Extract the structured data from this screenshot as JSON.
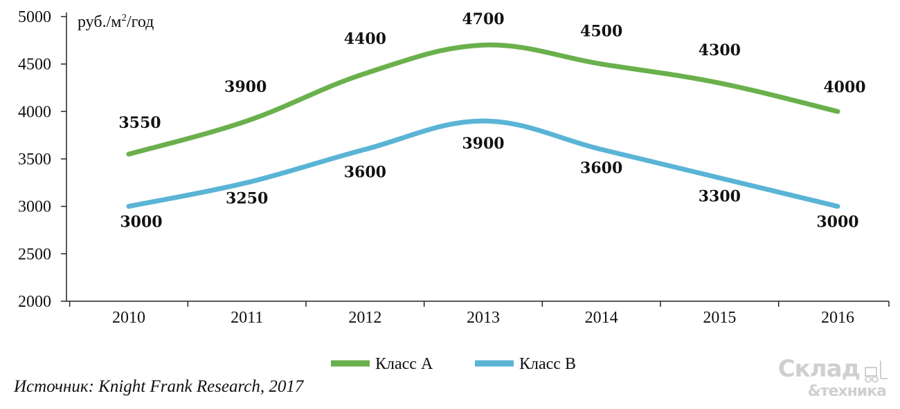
{
  "chart_data": {
    "type": "line",
    "unit_label": "руб./м",
    "unit_sup": "2",
    "unit_suffix": "/год",
    "categories": [
      "2010",
      "2011",
      "2012",
      "2013",
      "2014",
      "2015",
      "2016"
    ],
    "ylim": [
      2000,
      5000
    ],
    "yticks": [
      2000,
      2500,
      3000,
      3500,
      4000,
      4500,
      5000
    ],
    "grid": false,
    "legend_position": "bottom",
    "series": [
      {
        "name": "Класс А",
        "color": "#6ab04c",
        "values": [
          3550,
          3900,
          4400,
          4700,
          4500,
          4300,
          4000
        ]
      },
      {
        "name": "Класс В",
        "color": "#5ab4d6",
        "values": [
          3000,
          3250,
          3600,
          3900,
          3600,
          3300,
          3000
        ]
      }
    ]
  },
  "source": "Источник: Knight Frank Research, 2017",
  "logo": {
    "line1": "Склад",
    "line2": "&техника"
  }
}
